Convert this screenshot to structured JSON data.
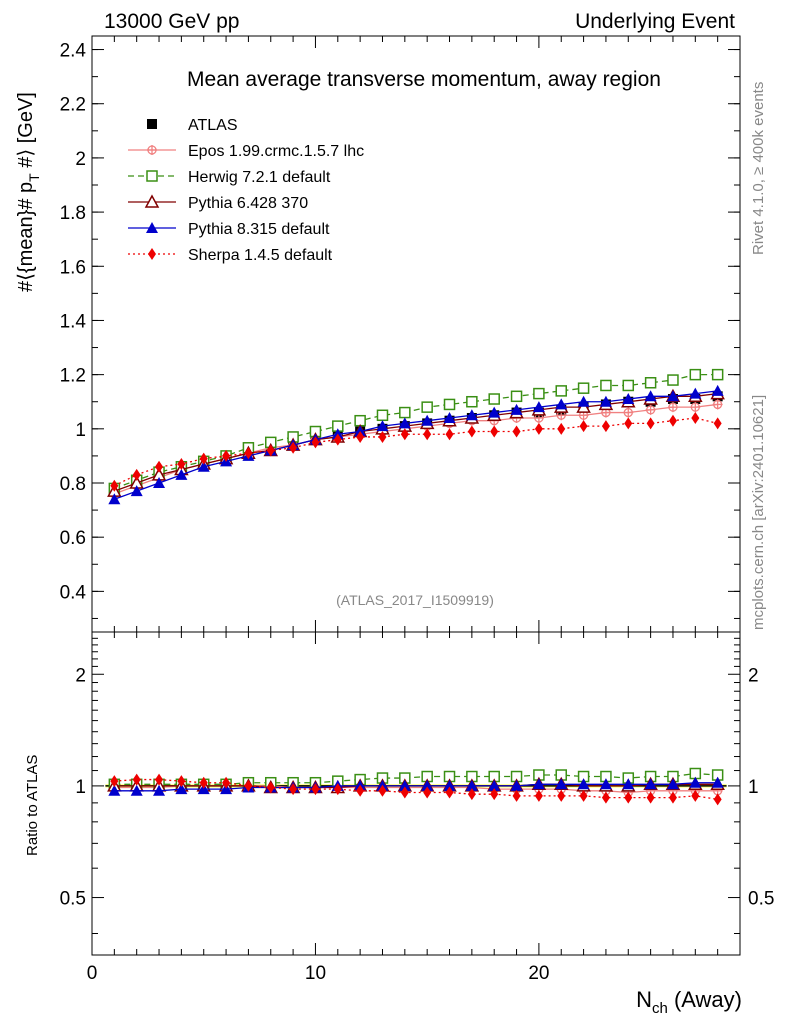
{
  "header": {
    "left": "13000 GeV pp",
    "right": "Underlying Event"
  },
  "side_labels": {
    "rivet": "Rivet 4.1.0, ≥ 400k events",
    "mcplots": "mcplots.cern.ch [arXiv:2401.10621]"
  },
  "analysis_id": "(ATLAS_2017_I1509919)",
  "chart_data": [
    {
      "type": "scatter",
      "panel": "main",
      "title": "Mean average transverse momentum, away region",
      "xlabel_main": "N",
      "xlabel_sub": "ch",
      "xlabel_tail": " (Away)",
      "ylabel": "#⟨{mean}# p",
      "ylabel_sub": "T",
      "ylabel_tail": " #⟩ [GeV]",
      "xlim": [
        0,
        29
      ],
      "ylim": [
        0.25,
        2.45
      ],
      "x_ticks": [
        0,
        10,
        20
      ],
      "y_ticks": [
        0.4,
        0.6,
        0.8,
        1,
        1.2,
        1.4,
        1.6,
        1.8,
        2,
        2.2,
        2.4
      ],
      "y_tick_labels": [
        "0.4",
        "0.6",
        "0.8",
        "1",
        "1.2",
        "1.4",
        "1.6",
        "1.8",
        "2",
        "2.2",
        "2.4"
      ],
      "x": [
        1,
        2,
        3,
        4,
        5,
        6,
        7,
        8,
        9,
        10,
        11,
        12,
        13,
        14,
        15,
        16,
        17,
        18,
        19,
        20,
        21,
        22,
        23,
        24,
        25,
        26,
        27,
        28
      ],
      "series": [
        {
          "name": "ATLAS",
          "color": "#000000",
          "marker": "square-filled",
          "line": "none",
          "values": [
            0.77,
            0.8,
            0.83,
            0.85,
            0.87,
            0.89,
            0.91,
            0.93,
            0.95,
            0.97,
            0.98,
            0.99,
            1.0,
            1.01,
            1.02,
            1.03,
            1.04,
            1.05,
            1.06,
            1.06,
            1.07,
            1.08,
            1.09,
            1.1,
            1.1,
            1.11,
            1.11,
            1.12
          ]
        },
        {
          "name": "Epos 1.99.crmc.1.5.7 lhc",
          "color": "#f08080",
          "marker": "cross-circle",
          "line": "solid",
          "values": [
            0.76,
            0.79,
            0.82,
            0.85,
            0.87,
            0.89,
            0.91,
            0.93,
            0.94,
            0.96,
            0.97,
            0.98,
            0.99,
            1.0,
            1.01,
            1.02,
            1.03,
            1.03,
            1.04,
            1.04,
            1.05,
            1.05,
            1.06,
            1.06,
            1.07,
            1.08,
            1.08,
            1.09
          ]
        },
        {
          "name": "Herwig 7.2.1 default",
          "color": "#3a8f14",
          "marker": "square-open",
          "line": "dashed",
          "values": [
            0.78,
            0.81,
            0.84,
            0.86,
            0.88,
            0.9,
            0.93,
            0.95,
            0.97,
            0.99,
            1.01,
            1.03,
            1.05,
            1.06,
            1.08,
            1.09,
            1.1,
            1.11,
            1.12,
            1.13,
            1.14,
            1.15,
            1.16,
            1.16,
            1.17,
            1.18,
            1.2,
            1.2
          ]
        },
        {
          "name": "Pythia 6.428 370",
          "color": "#800000",
          "marker": "triangle-open",
          "line": "solid",
          "values": [
            0.77,
            0.8,
            0.83,
            0.85,
            0.87,
            0.89,
            0.91,
            0.92,
            0.94,
            0.96,
            0.97,
            0.99,
            1.0,
            1.01,
            1.02,
            1.03,
            1.04,
            1.05,
            1.06,
            1.07,
            1.08,
            1.08,
            1.09,
            1.1,
            1.11,
            1.12,
            1.12,
            1.13
          ]
        },
        {
          "name": "Pythia 8.315 default",
          "color": "#0000cc",
          "marker": "triangle-filled",
          "line": "solid",
          "values": [
            0.74,
            0.77,
            0.8,
            0.83,
            0.86,
            0.88,
            0.9,
            0.92,
            0.94,
            0.96,
            0.98,
            0.99,
            1.01,
            1.02,
            1.03,
            1.04,
            1.05,
            1.06,
            1.07,
            1.08,
            1.09,
            1.1,
            1.1,
            1.11,
            1.12,
            1.12,
            1.13,
            1.14
          ]
        },
        {
          "name": "Sherpa 1.4.5 default",
          "color": "#ee0000",
          "marker": "diamond-filled",
          "line": "dotted",
          "values": [
            0.79,
            0.83,
            0.86,
            0.87,
            0.89,
            0.9,
            0.91,
            0.92,
            0.93,
            0.95,
            0.96,
            0.97,
            0.97,
            0.98,
            0.98,
            0.98,
            0.99,
            0.99,
            0.99,
            1.0,
            1.0,
            1.01,
            1.01,
            1.02,
            1.02,
            1.03,
            1.04,
            1.02
          ]
        }
      ]
    },
    {
      "type": "line",
      "panel": "ratio",
      "ylabel": "Ratio to ATLAS",
      "xlim": [
        0,
        29
      ],
      "ylim": [
        0.35,
        2.6
      ],
      "scale": "log",
      "x_ticks": [
        0,
        10,
        20
      ],
      "x_tick_labels": [
        "0",
        "10",
        "20"
      ],
      "y_ticks": [
        0.5,
        1,
        2
      ],
      "y_tick_labels": [
        "0.5",
        "1",
        "2"
      ],
      "band": {
        "color": "#ffff66",
        "halfwidth": 0.01
      },
      "x": [
        1,
        2,
        3,
        4,
        5,
        6,
        7,
        8,
        9,
        10,
        11,
        12,
        13,
        14,
        15,
        16,
        17,
        18,
        19,
        20,
        21,
        22,
        23,
        24,
        25,
        26,
        27,
        28
      ],
      "series": [
        {
          "name": "Epos 1.99.crmc.1.5.7 lhc",
          "color": "#f08080",
          "marker": "cross-circle",
          "line": "solid",
          "values": [
            0.99,
            0.99,
            0.99,
            1.0,
            1.0,
            1.0,
            1.0,
            1.0,
            0.99,
            0.99,
            0.99,
            0.99,
            0.99,
            0.99,
            0.99,
            0.99,
            0.99,
            0.98,
            0.98,
            0.98,
            0.98,
            0.97,
            0.97,
            0.96,
            0.97,
            0.97,
            0.97,
            0.97
          ]
        },
        {
          "name": "Herwig 7.2.1 default",
          "color": "#3a8f14",
          "marker": "square-open",
          "line": "dashed",
          "values": [
            1.01,
            1.01,
            1.01,
            1.01,
            1.01,
            1.01,
            1.02,
            1.02,
            1.02,
            1.02,
            1.03,
            1.04,
            1.05,
            1.05,
            1.06,
            1.06,
            1.06,
            1.06,
            1.06,
            1.07,
            1.07,
            1.06,
            1.06,
            1.05,
            1.06,
            1.06,
            1.08,
            1.07
          ]
        },
        {
          "name": "Pythia 6.428 370",
          "color": "#800000",
          "marker": "triangle-open",
          "line": "solid",
          "values": [
            1.0,
            1.0,
            1.0,
            1.0,
            1.0,
            1.0,
            1.0,
            0.99,
            0.99,
            0.99,
            0.99,
            1.0,
            1.0,
            1.0,
            1.0,
            1.0,
            1.0,
            1.0,
            1.0,
            1.01,
            1.01,
            1.0,
            1.0,
            1.0,
            1.01,
            1.01,
            1.01,
            1.01
          ]
        },
        {
          "name": "Pythia 8.315 default",
          "color": "#0000cc",
          "marker": "triangle-filled",
          "line": "solid",
          "values": [
            0.97,
            0.97,
            0.97,
            0.98,
            0.98,
            0.98,
            0.99,
            0.99,
            0.99,
            0.99,
            1.0,
            1.0,
            1.0,
            1.0,
            1.0,
            1.0,
            1.0,
            1.0,
            1.0,
            1.01,
            1.01,
            1.01,
            1.01,
            1.01,
            1.01,
            1.01,
            1.02,
            1.02
          ]
        },
        {
          "name": "Sherpa 1.4.5 default",
          "color": "#ee0000",
          "marker": "diamond-filled",
          "line": "dotted",
          "values": [
            1.03,
            1.04,
            1.04,
            1.03,
            1.02,
            1.02,
            1.0,
            0.99,
            0.98,
            0.98,
            0.98,
            0.97,
            0.97,
            0.96,
            0.96,
            0.96,
            0.95,
            0.95,
            0.94,
            0.94,
            0.94,
            0.94,
            0.93,
            0.93,
            0.93,
            0.93,
            0.94,
            0.92
          ]
        }
      ]
    }
  ]
}
